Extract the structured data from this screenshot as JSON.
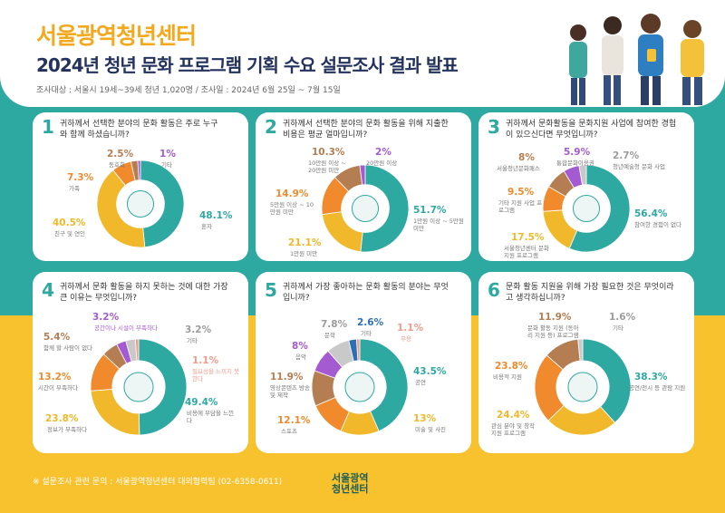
{
  "header": {
    "org": "서울광역청년센터",
    "title": "2024년 청년 문화 프로그램 기획 수요 설문조사 결과 발표",
    "meta": "조사대상 : 서울시 19세~39세 청년 1,020명 / 조사일 : 2024년 6월 25일 ~ 7월 15일"
  },
  "footer": {
    "contact": "※ 설문조사 관련 문의 : 서울광역청년센터 대외협력팀 (02-6358-0611)",
    "logo_line1": "서울광역",
    "logo_line2": "청년센터"
  },
  "colors": {
    "teal": "#2ea9a1",
    "yellow": "#f0b82a",
    "orange": "#f08a2c",
    "brown": "#b47e52",
    "purple": "#a45ad1",
    "gray": "#c9c9c9",
    "pink": "#f19b8c"
  },
  "chart_data": [
    {
      "type": "pie",
      "number": "1",
      "question": "귀하께서 선택한 분야의 문화 활동은 주로 누구와 함께 하셨습니까?",
      "slices": [
        {
          "label": "혼자",
          "value": 48.1,
          "color": "#2ea9a1"
        },
        {
          "label": "친구 및 연인",
          "value": 40.5,
          "color": "#f0b82a"
        },
        {
          "label": "가족",
          "value": 7.3,
          "color": "#f08a2c"
        },
        {
          "label": "동호회",
          "value": 2.5,
          "color": "#b47e52"
        },
        {
          "label": "기타",
          "value": 1,
          "color": "#a45ad1"
        }
      ]
    },
    {
      "type": "pie",
      "number": "2",
      "question": "귀하께서 선택한 분야의 문화 활동을 위해 지출한 비용은 평균 얼마입니까?",
      "slices": [
        {
          "label": "1만원 이상 ~ 5만원 미만",
          "value": 51.7,
          "color": "#2ea9a1"
        },
        {
          "label": "1만원 미만",
          "value": 21.1,
          "color": "#f0b82a"
        },
        {
          "label": "5만원 이상 ~ 10만원 미만",
          "value": 14.9,
          "color": "#f08a2c"
        },
        {
          "label": "10만원 이상 ~ 20만원 미만",
          "value": 10.3,
          "color": "#b47e52"
        },
        {
          "label": "20만원 이상",
          "value": 2,
          "color": "#a45ad1"
        }
      ]
    },
    {
      "type": "pie",
      "number": "3",
      "question": "귀하께서 문화활동을 문화지원 사업에 참여한 경험이 있으신다면 무엇입니까?",
      "slices": [
        {
          "label": "참여한 경험이 없다",
          "value": 56.4,
          "color": "#2ea9a1"
        },
        {
          "label": "서울청년센터 문화 지원 프로그램",
          "value": 17.5,
          "color": "#f0b82a"
        },
        {
          "label": "기타 지원 사업 프로그램",
          "value": 9.5,
          "color": "#f08a2c"
        },
        {
          "label": "서울청년문화패스",
          "value": 8,
          "color": "#b47e52"
        },
        {
          "label": "통합문화이용권",
          "value": 5.9,
          "color": "#a45ad1"
        },
        {
          "label": "청년예술청 문화 사업",
          "value": 2.7,
          "color": "#c9c9c9"
        }
      ]
    },
    {
      "type": "pie",
      "number": "4",
      "question": "귀하께서 문화 활동을 하지 못하는 것에 대한 가장 큰 이유는 무엇입니까?",
      "slices": [
        {
          "label": "비용에 부담을 느낀다",
          "value": 49.4,
          "color": "#2ea9a1"
        },
        {
          "label": "정보가 부족하다",
          "value": 23.8,
          "color": "#f0b82a"
        },
        {
          "label": "시간이 부족하다",
          "value": 13.2,
          "color": "#f08a2c"
        },
        {
          "label": "함께 할 사람이 없다",
          "value": 5.4,
          "color": "#b47e52"
        },
        {
          "label": "공간이나 시설이 부족하다",
          "value": 3.2,
          "color": "#a45ad1"
        },
        {
          "label": "기타",
          "value": 3.2,
          "color": "#c9c9c9"
        },
        {
          "label": "필요성을 느끼지 못한다",
          "value": 1.1,
          "color": "#f19b8c"
        }
      ]
    },
    {
      "type": "pie",
      "number": "5",
      "question": "귀하께서 가장 좋아하는 문화 활동의 분야는 무엇입니까?",
      "slices": [
        {
          "label": "공연",
          "value": 43.5,
          "color": "#2ea9a1"
        },
        {
          "label": "미술 및 사진",
          "value": 13,
          "color": "#f0b82a"
        },
        {
          "label": "스포츠",
          "value": 12.1,
          "color": "#f08a2c"
        },
        {
          "label": "영상콘텐츠 방송 및 제작",
          "value": 11.9,
          "color": "#b47e52"
        },
        {
          "label": "음악",
          "value": 8,
          "color": "#a45ad1"
        },
        {
          "label": "문학",
          "value": 7.8,
          "color": "#c9c9c9"
        },
        {
          "label": "기타",
          "value": 2.6,
          "color": "#2d6fb6"
        },
        {
          "label": "무용",
          "value": 1.1,
          "color": "#f19b8c"
        }
      ]
    },
    {
      "type": "pie",
      "number": "6",
      "question": "문화 활동 지원을 위해 가장 필요한 것은 무엇이라고 생각하십니까?",
      "slices": [
        {
          "label": "공연/전시 등 관람 지원",
          "value": 38.3,
          "color": "#2ea9a1"
        },
        {
          "label": "관심 분야 및 창작 지원 프로그램",
          "value": 24.4,
          "color": "#f0b82a"
        },
        {
          "label": "비용적 지원",
          "value": 23.8,
          "color": "#f08a2c"
        },
        {
          "label": "문화 활동 지원 (동아리 지원 등) 프로그램",
          "value": 11.9,
          "color": "#b47e52"
        },
        {
          "label": "기타",
          "value": 1.6,
          "color": "#c9c9c9"
        }
      ]
    }
  ]
}
